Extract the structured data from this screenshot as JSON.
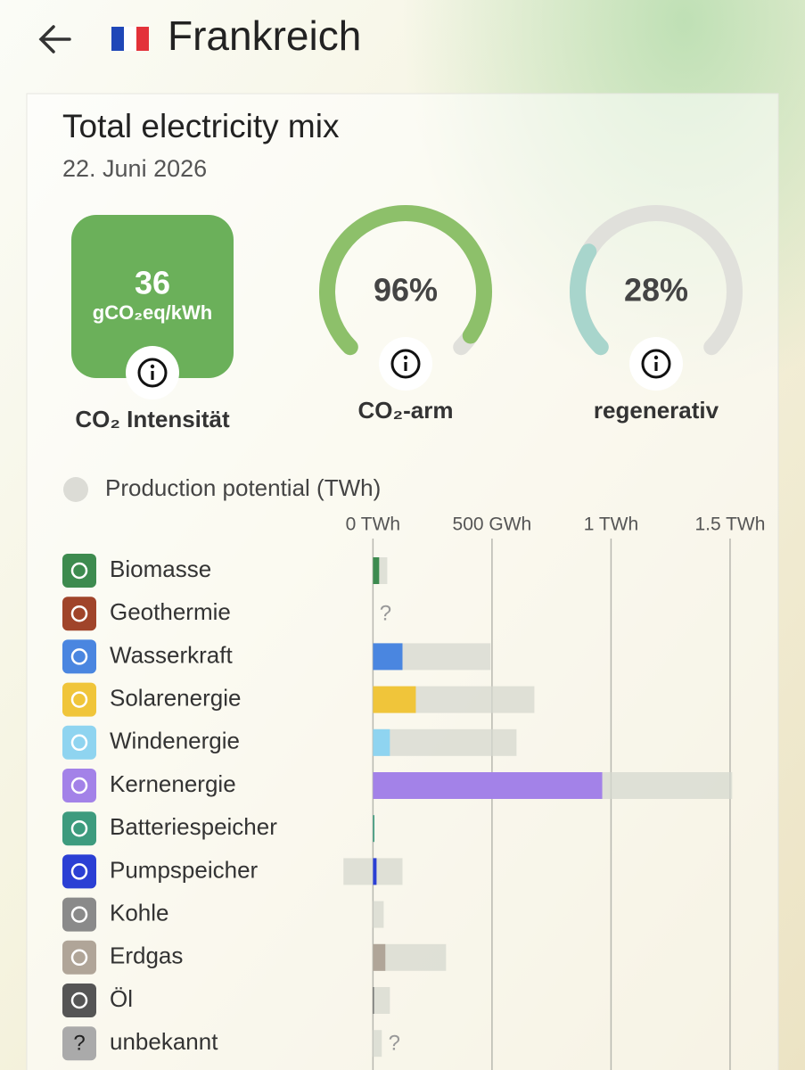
{
  "header": {
    "title": "Frankreich"
  },
  "card": {
    "title": "Total electricity mix",
    "date": "22. Juni 2026"
  },
  "metrics": [
    {
      "value": 36,
      "unit": "gCO₂eq/kWh",
      "label": "CO₂ Intensität",
      "color": "#6bb05a"
    },
    {
      "value": 96,
      "value_label": "96%",
      "label": "CO₂-arm",
      "color": "#8dc06a"
    },
    {
      "value": 28,
      "value_label": "28%",
      "label": "regenerativ",
      "color": "#a8d5cc"
    }
  ],
  "chart_data": {
    "type": "bar",
    "orientation": "horizontal",
    "categories": [
      "Biomasse",
      "Geothermie",
      "Wasserkraft",
      "Solarenergie",
      "Windenergie",
      "Kernenergie",
      "Batteriespeicher",
      "Pumpspeicher",
      "Kohle",
      "Erdgas",
      "Öl",
      "unbekannt"
    ],
    "values": [
      26,
      null,
      124,
      180,
      71,
      963,
      6,
      15,
      0,
      52,
      4,
      null
    ],
    "colors": [
      "#3d8b4f",
      "#a0442a",
      "#4a86e0",
      "#f0c53a",
      "#8fd4f0",
      "#a382e8",
      "#3d9b7e",
      "#2b3fd4",
      "#8a8a8a",
      "#b0a598",
      "#555555",
      "#aaaaaa"
    ],
    "unknown_label": "?",
    "series": [
      {
        "name": "Production potential (TWh)",
        "color": "#d6d8cf",
        "values": [
          60,
          null,
          494,
          678,
          603,
          1509,
          6,
          124,
          45,
          307,
          71,
          37
        ],
        "low": [
          0,
          null,
          0,
          0,
          0,
          0,
          0,
          -124,
          0,
          0,
          0,
          0
        ]
      }
    ],
    "xlim": [
      -125,
      1650
    ],
    "xticks": [
      {
        "value": 0,
        "label": "0 TWh"
      },
      {
        "value": 500,
        "label": "500 GWh"
      },
      {
        "value": 1000,
        "label": "1 TWh"
      },
      {
        "value": 1500,
        "label": "1.5 TWh"
      }
    ],
    "grid": true
  }
}
